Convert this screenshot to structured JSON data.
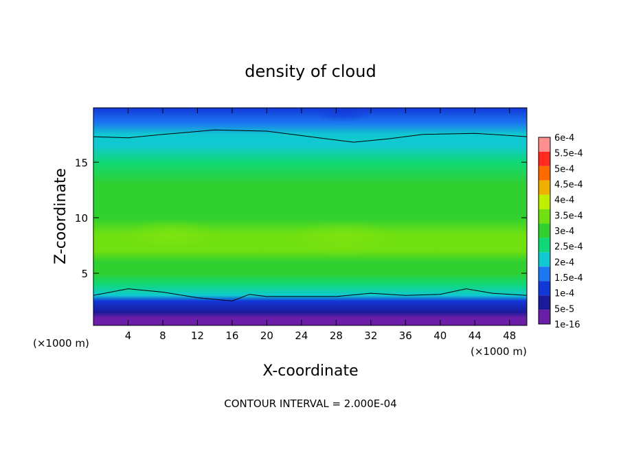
{
  "chart_data": {
    "type": "heatmap",
    "title": "density of cloud",
    "xlabel": "X-coordinate",
    "ylabel": "Z-coordinate",
    "x_unit_left": "(×1000 m)",
    "x_unit_right": "(×1000 m)",
    "footer": "CONTOUR INTERVAL = 2.000E-04",
    "xlim": [
      0,
      50
    ],
    "ylim": [
      0.3,
      19.9
    ],
    "x_ticks": [
      4,
      8,
      12,
      16,
      20,
      24,
      28,
      32,
      36,
      40,
      44,
      48
    ],
    "y_ticks": [
      5,
      10,
      15
    ],
    "colorbar": {
      "labels": [
        "1e-16",
        "5e-5",
        "1e-4",
        "1.5e-4",
        "2e-4",
        "2.5e-4",
        "3e-4",
        "3.5e-4",
        "4e-4",
        "4.5e-4",
        "5e-4",
        "5.5e-4",
        "6e-4"
      ],
      "values": [
        1e-16,
        5e-05,
        0.0001,
        0.00015,
        0.0002,
        0.00025,
        0.0003,
        0.00035,
        0.0004,
        0.00045,
        0.0005,
        0.00055,
        0.0006
      ],
      "colors": [
        "#6a1ea8",
        "#1a1a9a",
        "#1238d8",
        "#1c78f0",
        "#10c8d0",
        "#10d878",
        "#30d030",
        "#70e010",
        "#c0f000",
        "#f0b000",
        "#ff6a00",
        "#ff2a20",
        "#ff9090"
      ]
    },
    "profile_z": [
      0.5,
      1.0,
      1.5,
      2.5,
      3.0,
      4.0,
      5.0,
      6.0,
      7.0,
      8.5,
      10.0,
      11.5,
      13.0,
      15.0,
      16.5,
      17.5,
      18.5,
      19.9
    ],
    "profile_density": [
      1e-16,
      2e-05,
      6e-05,
      0.00012,
      0.0002,
      0.00026,
      0.0003,
      0.00033,
      0.00035,
      0.00036,
      0.00034,
      0.00032,
      0.0003,
      0.00028,
      0.00023,
      0.0002,
      0.00016,
      0.00012
    ],
    "contour_2e-4_upper": {
      "x": [
        0,
        4,
        8,
        14,
        20,
        26,
        30,
        34,
        38,
        44,
        48,
        50
      ],
      "z": [
        17.3,
        17.2,
        17.5,
        17.9,
        17.8,
        17.2,
        16.8,
        17.1,
        17.5,
        17.6,
        17.4,
        17.3
      ]
    },
    "contour_2e-4_lower": {
      "x": [
        0,
        4,
        8,
        12,
        16,
        18,
        20,
        24,
        28,
        32,
        36,
        40,
        43,
        46,
        50
      ],
      "z": [
        3.0,
        3.6,
        3.3,
        2.8,
        2.5,
        3.1,
        2.9,
        2.9,
        2.9,
        3.2,
        3.0,
        3.1,
        3.6,
        3.2,
        3.0
      ]
    }
  }
}
